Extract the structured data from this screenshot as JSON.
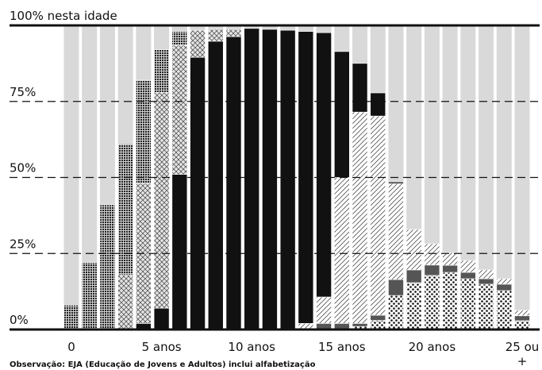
{
  "chart_data": {
    "type": "stacked_bar",
    "categories": [
      "0",
      null,
      null,
      null,
      null,
      "5 anos",
      null,
      null,
      null,
      null,
      "10 anos",
      null,
      null,
      null,
      null,
      "15 anos",
      null,
      null,
      null,
      null,
      "20 anos",
      null,
      null,
      null,
      null,
      "25 ou +"
    ],
    "ylim": [
      0,
      100
    ],
    "yticks": [
      {
        "value": 0,
        "label": "0%"
      },
      {
        "value": 25,
        "label": "25%"
      },
      {
        "value": 50,
        "label": "50%"
      },
      {
        "value": 75,
        "label": "75%"
      },
      {
        "value": 100,
        "label": "100% nesta idade"
      }
    ],
    "grid": true,
    "background_color": "#d9d9d9",
    "note": "Observação: EJA (Educação de Jovens e Adultos) inclui alfabetização",
    "series": [
      {
        "pattern": "dots",
        "color": "#111111",
        "values": [
          0,
          0,
          0,
          0,
          0,
          0,
          0,
          0,
          0,
          0,
          0,
          0,
          0,
          0,
          0,
          0,
          1,
          3,
          11.2,
          15.4,
          17.8,
          18.8,
          16.7,
          14.9,
          12.8,
          2.9
        ]
      },
      {
        "pattern": "solid",
        "color": "#555555",
        "values": [
          0,
          0,
          0,
          0,
          0,
          0,
          0,
          0,
          0,
          0,
          0,
          0,
          0,
          0,
          2,
          2,
          1,
          1.7,
          5.2,
          4.2,
          3.4,
          2.3,
          2.1,
          1.8,
          2.1,
          1.6
        ]
      },
      {
        "pattern": "hatch",
        "color": "#333333",
        "values": [
          0,
          0,
          0,
          0,
          0,
          0,
          0,
          0,
          0,
          0,
          0,
          0,
          0,
          2,
          8.7,
          48,
          69.5,
          65.5,
          31.6,
          13.3,
          7,
          4.2,
          3.9,
          2.9,
          1.8,
          1.8
        ]
      },
      {
        "pattern": "solid",
        "color": "#111111",
        "values": [
          0,
          0,
          0,
          0,
          2,
          7,
          51,
          89.5,
          94.8,
          96.3,
          99,
          98.7,
          98.4,
          96,
          86.9,
          41.4,
          16,
          7.6,
          0.5,
          0,
          0,
          0,
          0,
          0,
          0,
          0
        ]
      },
      {
        "pattern": "crosshatch",
        "color": "#444444",
        "values": [
          0,
          0,
          0,
          18,
          46,
          71,
          42.5,
          8.9,
          3.9,
          2.4,
          0,
          0,
          0,
          0,
          0,
          0,
          0,
          0,
          0,
          0,
          0,
          0,
          0,
          0,
          0,
          0
        ]
      },
      {
        "pattern": "grid",
        "color": "#222222",
        "values": [
          8,
          22,
          41,
          43,
          34,
          14,
          4.5,
          0,
          0,
          0,
          0,
          0,
          0,
          0,
          0,
          0,
          0,
          0,
          0,
          0,
          0,
          0,
          0,
          0,
          0,
          0
        ]
      }
    ]
  }
}
